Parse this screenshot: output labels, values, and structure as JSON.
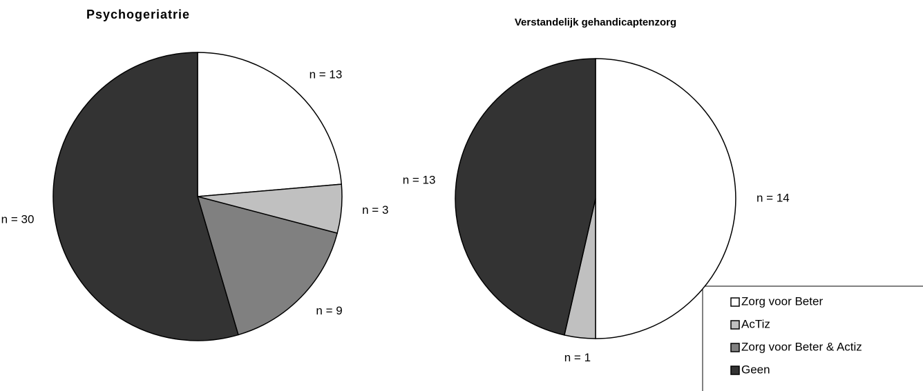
{
  "legend": {
    "position": "lower right",
    "categories": [
      "Zorg voor Beter",
      "AcTiz",
      "Zorg voor Beter & Actiz",
      "Geen"
    ],
    "colors": [
      "#ffffff",
      "#c0c0c0",
      "#808080",
      "#333333"
    ]
  },
  "chart_data": [
    {
      "type": "pie",
      "title": "Psychogeriatrie",
      "values": [
        13,
        3,
        9,
        30
      ],
      "value_labels": [
        "n = 13",
        "n = 3",
        "n = 9",
        "n = 30"
      ]
    },
    {
      "type": "pie",
      "title": "Verstandelijk gehandicaptenzorg",
      "values": [
        14,
        1,
        0,
        13
      ],
      "value_labels": [
        "n = 14",
        "n = 1",
        null,
        "n = 13"
      ]
    }
  ]
}
